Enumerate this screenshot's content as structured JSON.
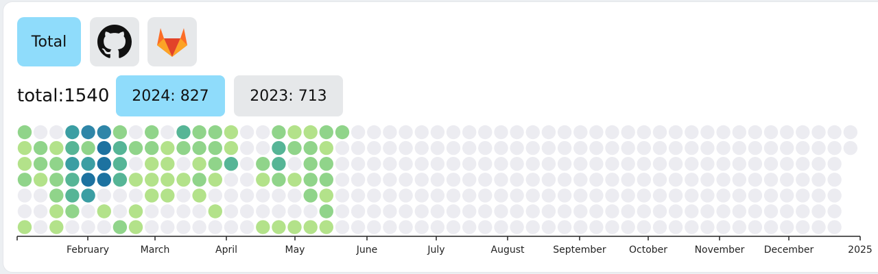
{
  "tabs": {
    "total_label": "Total",
    "github_icon": "github-icon",
    "gitlab_icon": "gitlab-icon"
  },
  "summary": {
    "total_text": "total:1540",
    "years": [
      {
        "label": "2024: 827",
        "selected": true
      },
      {
        "label": "2023: 713",
        "selected": false
      }
    ]
  },
  "heatmap": {
    "colors": {
      "empty": "#ececf1",
      "level1": "#b3e28a",
      "level2": "#90d48a",
      "level3": "#56b596",
      "level4": "#3b9ea3",
      "level5": "#2f86a8",
      "level6": "#1d72a0",
      "accent_blue": "#8fdcfb"
    },
    "month_labels": [
      "February",
      "March",
      "April",
      "May",
      "June",
      "July",
      "August",
      "September",
      "October",
      "November",
      "December",
      "2025"
    ],
    "weeks_total": 53,
    "levels": [
      [
        2,
        1,
        1,
        2,
        0,
        0,
        1
      ],
      [
        0,
        2,
        2,
        1,
        0,
        0,
        0
      ],
      [
        0,
        1,
        2,
        2,
        2,
        1,
        1
      ],
      [
        4,
        3,
        4,
        3,
        3,
        2,
        0
      ],
      [
        5,
        2,
        4,
        6,
        4,
        0,
        0
      ],
      [
        5,
        6,
        6,
        6,
        0,
        1,
        0
      ],
      [
        2,
        3,
        3,
        3,
        0,
        0,
        2
      ],
      [
        0,
        2,
        0,
        1,
        0,
        1,
        1
      ],
      [
        2,
        2,
        1,
        1,
        1,
        0,
        0
      ],
      [
        0,
        1,
        1,
        1,
        1,
        0,
        0
      ],
      [
        3,
        2,
        0,
        1,
        0,
        0,
        0
      ],
      [
        2,
        2,
        1,
        2,
        1,
        0,
        0
      ],
      [
        2,
        2,
        2,
        1,
        0,
        1,
        0
      ],
      [
        1,
        1,
        3,
        0,
        0,
        0,
        0
      ],
      [
        0,
        0,
        0,
        0,
        0,
        0,
        0
      ],
      [
        0,
        0,
        2,
        1,
        0,
        0,
        1
      ],
      [
        2,
        3,
        3,
        2,
        0,
        0,
        1
      ],
      [
        1,
        2,
        0,
        1,
        0,
        0,
        1
      ],
      [
        1,
        2,
        2,
        2,
        2,
        0,
        1
      ],
      [
        2,
        1,
        2,
        2,
        1,
        2,
        1
      ],
      [
        2,
        0,
        0,
        0,
        0,
        0,
        0
      ]
    ]
  }
}
